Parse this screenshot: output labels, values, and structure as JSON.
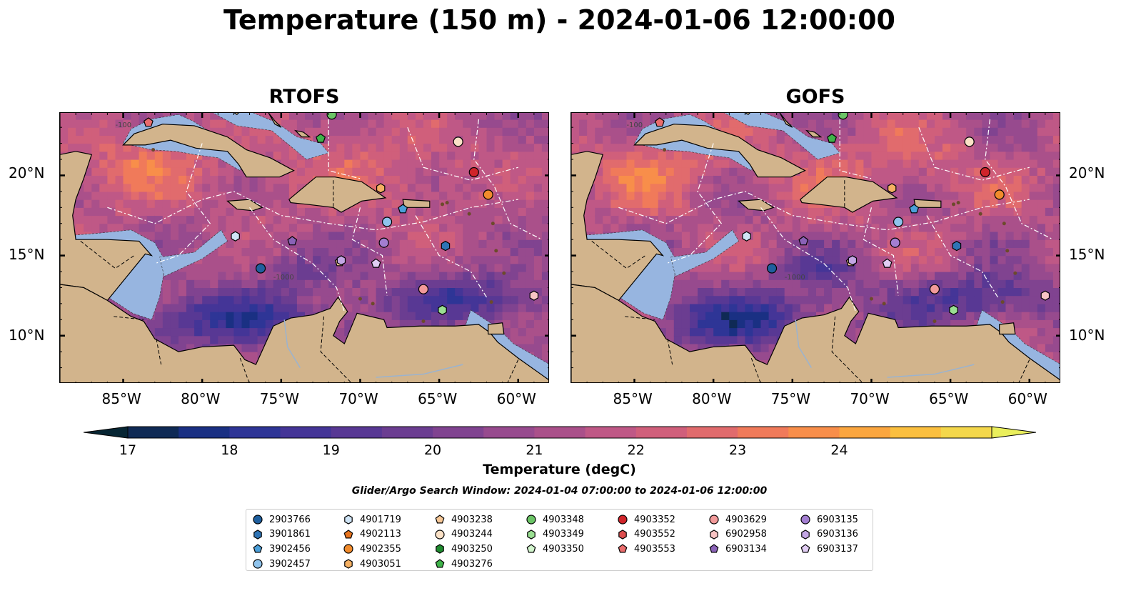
{
  "title": "Temperature (150 m) - 2024-01-06 12:00:00",
  "panels": [
    {
      "title": "RTOFS"
    },
    {
      "title": "GOFS"
    }
  ],
  "lon_labels": [
    "85°W",
    "80°W",
    "75°W",
    "70°W",
    "65°W",
    "60°W"
  ],
  "lat_labels": [
    "20°N",
    "15°N",
    "10°N"
  ],
  "contour_labels": [
    "-1000",
    "-100"
  ],
  "colorbar": {
    "label": "Temperature (degC)",
    "ticks": [
      "17",
      "18",
      "19",
      "20",
      "21",
      "22",
      "23",
      "24"
    ],
    "colors": [
      "#062533",
      "#0f2a55",
      "#1a3083",
      "#2e3596",
      "#443597",
      "#583894",
      "#6b3d91",
      "#804390",
      "#974a8e",
      "#aa508a",
      "#bf5886",
      "#d05f7b",
      "#e16b6d",
      "#f07a5a",
      "#f88e4a",
      "#fba63f",
      "#fbbf3f",
      "#f4d74b",
      "#eaef5c"
    ],
    "extend": "both"
  },
  "search_window": "Glider/Argo Search Window: 2024-01-04 07:00:00 to 2024-01-06 12:00:00",
  "legend": [
    [
      {
        "id": "2903766",
        "marker": "circle",
        "color": "#1f5f9e"
      },
      {
        "id": "3901861",
        "marker": "hexagon",
        "color": "#2f74b5"
      },
      {
        "id": "3902456",
        "marker": "pentagon",
        "color": "#4b9fd9"
      },
      {
        "id": "3902457",
        "marker": "circle",
        "color": "#8fc3ec"
      }
    ],
    [
      {
        "id": "4901719",
        "marker": "hexagon",
        "color": "#cfe4f6"
      },
      {
        "id": "4902113",
        "marker": "pentagon",
        "color": "#e8741e"
      },
      {
        "id": "4902355",
        "marker": "circle",
        "color": "#f18b2c"
      },
      {
        "id": "4903051",
        "marker": "hexagon",
        "color": "#f5b062"
      }
    ],
    [
      {
        "id": "4903238",
        "marker": "pentagon",
        "color": "#f7c897"
      },
      {
        "id": "4903244",
        "marker": "circle",
        "color": "#fbe1c6"
      },
      {
        "id": "4903250",
        "marker": "hexagon",
        "color": "#1e8a2e"
      },
      {
        "id": "4903276",
        "marker": "pentagon",
        "color": "#3fb34a"
      }
    ],
    [
      {
        "id": "4903348",
        "marker": "circle",
        "color": "#6bc466"
      },
      {
        "id": "4903349",
        "marker": "hexagon",
        "color": "#9adf92"
      },
      {
        "id": "4903350",
        "marker": "pentagon",
        "color": "#d2f5cd"
      }
    ],
    [
      {
        "id": "4903352",
        "marker": "circle",
        "color": "#d0242a"
      },
      {
        "id": "4903552",
        "marker": "hexagon",
        "color": "#dc4d4e"
      },
      {
        "id": "4903553",
        "marker": "pentagon",
        "color": "#ea6c6c"
      }
    ],
    [
      {
        "id": "4903629",
        "marker": "circle",
        "color": "#f29a9a"
      },
      {
        "id": "6902958",
        "marker": "hexagon",
        "color": "#f8c4c4"
      },
      {
        "id": "6903134",
        "marker": "pentagon",
        "color": "#8a62b7"
      }
    ],
    [
      {
        "id": "6903135",
        "marker": "circle",
        "color": "#a37ed1"
      },
      {
        "id": "6903136",
        "marker": "hexagon",
        "color": "#c3a6e4"
      },
      {
        "id": "6903137",
        "marker": "pentagon",
        "color": "#e1cdf3"
      }
    ]
  ],
  "stations": [
    {
      "id": "4903553",
      "lon": -83.4,
      "lat": 23.3
    },
    {
      "id": "4903348",
      "lon": -71.8,
      "lat": 23.8
    },
    {
      "id": "4903276",
      "lon": -72.5,
      "lat": 22.3
    },
    {
      "id": "4903244",
      "lon": -63.8,
      "lat": 22.1
    },
    {
      "id": "4903352",
      "lon": -62.8,
      "lat": 20.2
    },
    {
      "id": "4902355",
      "lon": -61.9,
      "lat": 18.8
    },
    {
      "id": "4903051",
      "lon": -68.7,
      "lat": 19.2
    },
    {
      "id": "3902456",
      "lon": -67.3,
      "lat": 17.9
    },
    {
      "id": "3902457",
      "lon": -68.3,
      "lat": 17.1
    },
    {
      "id": "4901719",
      "lon": -77.9,
      "lat": 16.2
    },
    {
      "id": "6903134",
      "lon": -74.3,
      "lat": 15.9
    },
    {
      "id": "6903135",
      "lon": -68.5,
      "lat": 15.8
    },
    {
      "id": "3901861",
      "lon": -64.6,
      "lat": 15.6
    },
    {
      "id": "4903238",
      "lon": -71.3,
      "lat": 14.6
    },
    {
      "id": "6903136",
      "lon": -71.2,
      "lat": 14.7
    },
    {
      "id": "6903137",
      "lon": -69.0,
      "lat": 14.5
    },
    {
      "id": "2903766",
      "lon": -76.3,
      "lat": 14.2
    },
    {
      "id": "4903629",
      "lon": -66.0,
      "lat": 12.9
    },
    {
      "id": "4903349",
      "lon": -64.8,
      "lat": 11.6
    },
    {
      "id": "6902958",
      "lon": -59.0,
      "lat": 12.5
    }
  ]
}
